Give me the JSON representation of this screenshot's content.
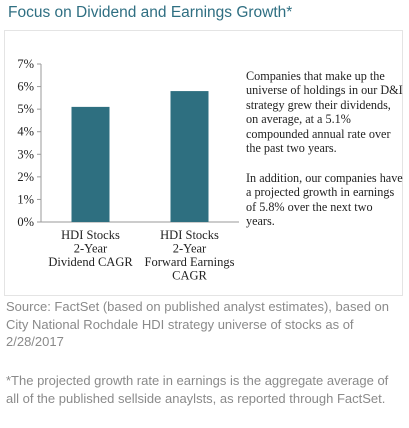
{
  "header": {
    "title": "Focus on Dividend and Earnings Growth*"
  },
  "description": {
    "paragraph1": "Companies that make up the universe of holdings in our D&I strategy grew their dividends, on average, at a 5.1% compounded annual rate over the past two years.",
    "paragraph2": "In addition, our companies have a projected growth in earnings of 5.8% over the next two years."
  },
  "footer": {
    "source": "Source: FactSet (based on published analyst estimates), based on City National Rochdale HDI strategy universe of stocks as of 2/28/2017",
    "note": "*The projected growth rate in earnings is the aggregate average of all of the published sellside anaylsts, as reported through FactSet."
  },
  "chart_data": {
    "type": "bar",
    "categories": [
      [
        "HDI Stocks",
        "2-Year",
        "Dividend CAGR"
      ],
      [
        "HDI Stocks",
        "2-Year",
        "Forward Earnings",
        "CAGR"
      ]
    ],
    "values": [
      5.1,
      5.8
    ],
    "unit": "%",
    "ylim": [
      0,
      7
    ],
    "yticks": [
      "0%",
      "1%",
      "2%",
      "3%",
      "4%",
      "5%",
      "6%",
      "7%"
    ],
    "grid": false,
    "legend": "none",
    "colors": {
      "bar": "#2e6f80",
      "title": "#2f6f82",
      "axis": "#9a9a9a",
      "footnote": "#8a8a8a"
    }
  }
}
